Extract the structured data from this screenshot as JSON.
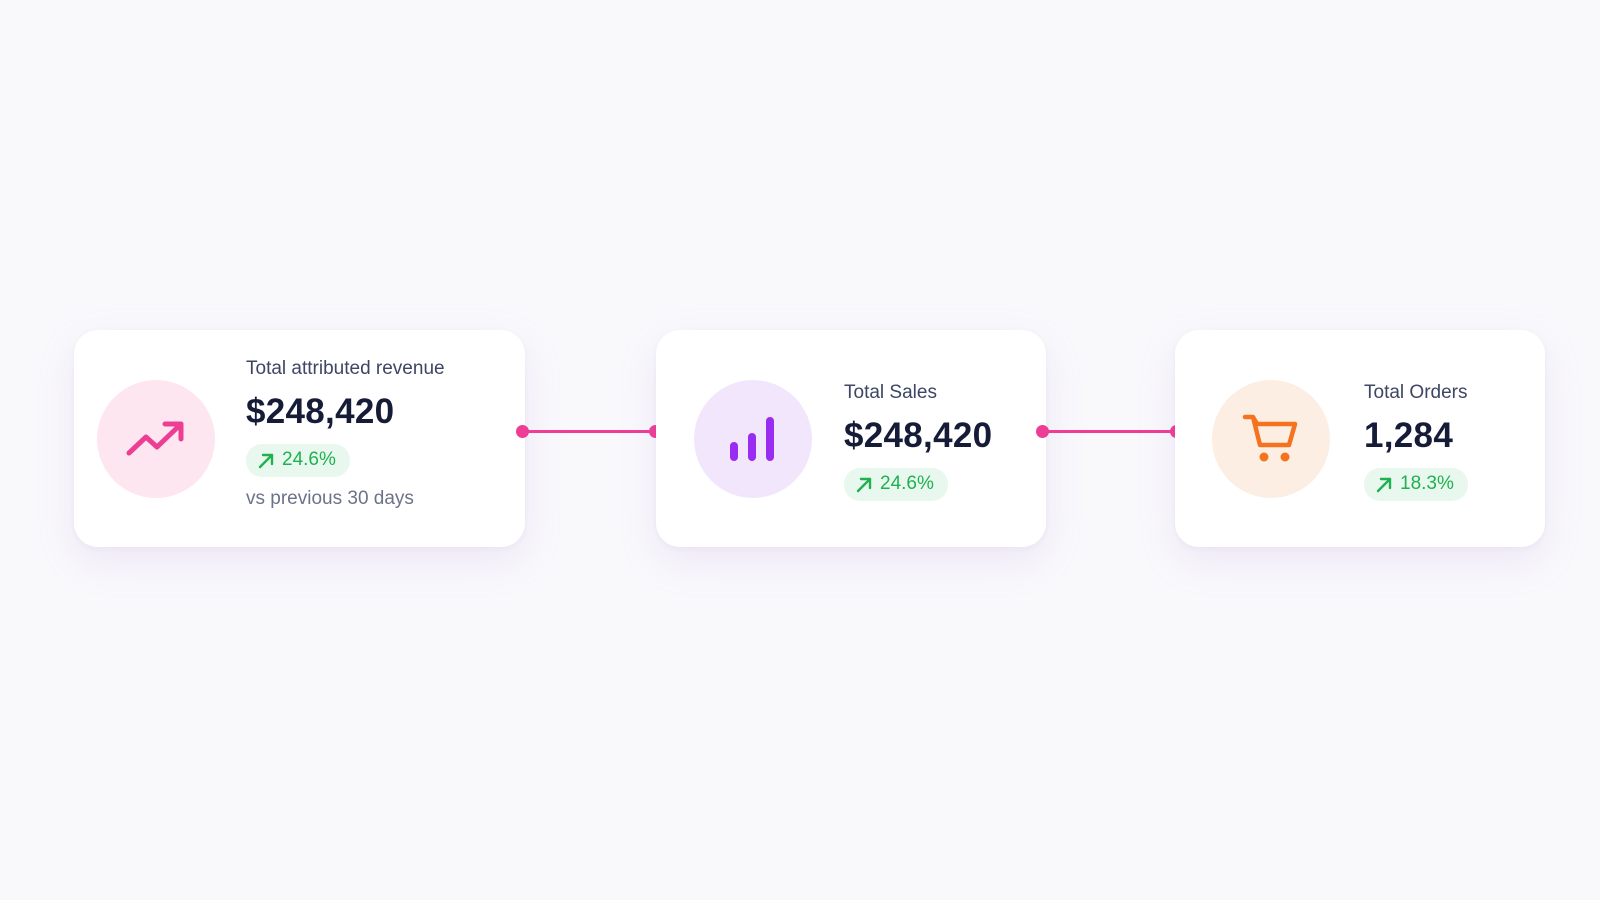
{
  "colors": {
    "background": "#f9f9fc",
    "connector": "#ee3d94",
    "badge_text": "#1fb150",
    "badge_bg": "#e9f8ee"
  },
  "cards": [
    {
      "label": "Total attributed revenue",
      "value": "$248,420",
      "change": "24.6%",
      "change_icon": "arrow-up-right-icon",
      "subtext": "vs previous 30 days",
      "icon": "trending-up-icon",
      "icon_color": "#ec3f93",
      "icon_bg": "#fde6f0"
    },
    {
      "label": "Total Sales",
      "value": "$248,420",
      "change": "24.6%",
      "change_icon": "arrow-up-right-icon",
      "icon": "bar-chart-icon",
      "icon_color": "#9a2bf0",
      "icon_bg": "#f2e6fd"
    },
    {
      "label": "Total Orders",
      "value": "1,284",
      "change": "18.3%",
      "change_icon": "arrow-up-right-icon",
      "icon": "shopping-cart-icon",
      "icon_color": "#f5731f",
      "icon_bg": "#fdeee3"
    }
  ]
}
